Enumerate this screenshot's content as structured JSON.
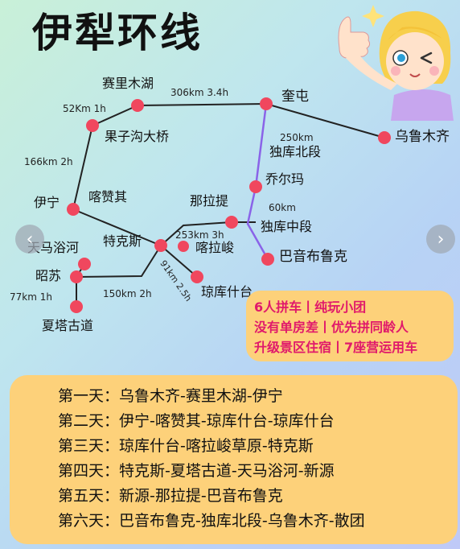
{
  "title": "伊犁环线",
  "stations": {
    "sailimu": "赛里木湖",
    "kuitun": "奎屯",
    "urumqi": "乌鲁木齐",
    "guozigou": "果子沟大桥",
    "dushanzi_north": "独库北段",
    "qiaoerma": "乔尔玛",
    "yining": "伊宁",
    "kazanqi": "喀赞其",
    "nalati": "那拉提",
    "dushanzi_mid": "独库中段",
    "tianma": "天马浴河",
    "tekesi": "特克斯",
    "kalajun": "喀拉峻",
    "bayinbuluke": "巴音布鲁克",
    "zhaosu": "昭苏",
    "kukushitai": "琼库什台",
    "xiata": "夏塔古道"
  },
  "distances": {
    "d_sailimu_kuitun": "306km 3.4h",
    "d_guozigou_sailimu": "52Km 1h",
    "d_kuitun_urumqi": "250km",
    "d_yining_guozigou": "166km 2h",
    "d_qiaoerma_nalati": "60km",
    "d_tekesi_nalati": "253km 3h",
    "d_tekesi_kukushitai": "91km 2.5h",
    "d_zhaosu_tekesi": "150km 2h",
    "d_zhaosu_xiata": "77km 1h"
  },
  "promo": [
    "6人拼车丨纯玩小团",
    "没有单房差丨优先拼同龄人",
    "升级景区住宿丨7座营运用车"
  ],
  "itinerary": [
    "第一天：乌鲁木齐-赛里木湖-伊宁",
    "第二天：伊宁-喀赞其-琼库什台-琼库什台",
    "第三天：琼库什台-喀拉峻草原-特克斯",
    "第四天：特克斯-夏塔古道-天马浴河-新源",
    "第五天：新源-那拉提-巴音布鲁克",
    "第六天：巴音布鲁克-独库北段-乌鲁木齐-散团"
  ],
  "nav": {
    "prev": "‹",
    "next": "›"
  },
  "colors": {
    "stop": "#f0475e",
    "route": "#222222",
    "highlight": "#8a63e8",
    "panel": "#fdd17a",
    "promo_text": "#e0196b"
  }
}
